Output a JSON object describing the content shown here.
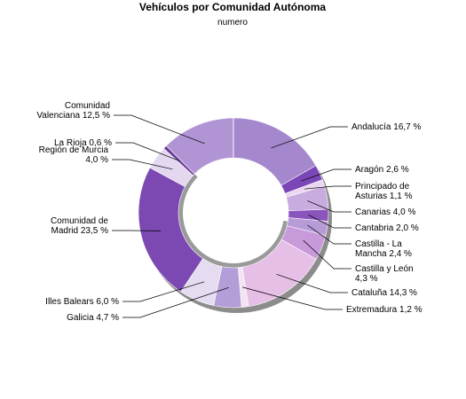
{
  "chart_data": {
    "type": "donut",
    "title": "Vehículos por Comunidad Autónoma",
    "subtitle": "numero",
    "unit": "%",
    "slices": [
      {
        "name": "Andalucía",
        "lines": [
          "Andalucía 16,7 %"
        ],
        "value": 16.7,
        "color": "#a487cc"
      },
      {
        "name": "Aragón",
        "lines": [
          "Aragón 2,6 %"
        ],
        "value": 2.6,
        "color": "#7b46b6"
      },
      {
        "name": "Principado de Asturias",
        "lines": [
          "Principado de",
          "Asturias 1,1 %"
        ],
        "value": 1.1,
        "color": "#ebd6ef"
      },
      {
        "name": "Canarias",
        "lines": [
          "Canarias 4,0 %"
        ],
        "value": 4.0,
        "color": "#c9acdf"
      },
      {
        "name": "Cantabria",
        "lines": [
          "Cantabria 2,0 %"
        ],
        "value": 2.0,
        "color": "#8a54bd"
      },
      {
        "name": "Castilla - La Mancha",
        "lines": [
          "Castilla - La",
          "Mancha 2,4 %"
        ],
        "value": 2.4,
        "color": "#b79bd7"
      },
      {
        "name": "Castilla y León",
        "lines": [
          "Castilla y León",
          "4,3 %"
        ],
        "value": 4.3,
        "color": "#c79ad9"
      },
      {
        "name": "Cataluña",
        "lines": [
          "Cataluña 14,3 %"
        ],
        "value": 14.3,
        "color": "#e6bfe6"
      },
      {
        "name": "Extremadura",
        "lines": [
          "Extremadura 1,2 %"
        ],
        "value": 1.2,
        "color": "#f2e4f3"
      },
      {
        "name": "Galicia",
        "lines": [
          "Galicia 4,7 %"
        ],
        "value": 4.7,
        "color": "#b39ed8"
      },
      {
        "name": "Illes Balears",
        "lines": [
          "Illes Balears 6,0 %"
        ],
        "value": 6.0,
        "color": "#e6dcf1"
      },
      {
        "name": "Comunidad de Madrid",
        "lines": [
          "Comunidad de",
          "Madrid 23,5 %"
        ],
        "value": 23.5,
        "color": "#7c49b2"
      },
      {
        "name": "Región de Murcia",
        "lines": [
          "Región de Murcia",
          "4,0 %"
        ],
        "value": 4.0,
        "color": "#e3d8f0"
      },
      {
        "name": "La Rioja",
        "lines": [
          "La Rioja 0,6 %"
        ],
        "value": 0.6,
        "color": "#6a3a9c"
      },
      {
        "name": "Comunidad Valenciana",
        "lines": [
          "Comunidad",
          "Valenciana 12,5 %"
        ],
        "value": 12.5,
        "color": "#b194d4"
      }
    ]
  }
}
